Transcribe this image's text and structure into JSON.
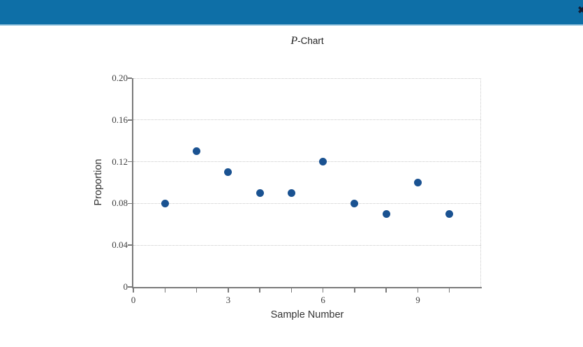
{
  "header": {
    "close_glyph": "✖"
  },
  "figure": {
    "title_italic": "P",
    "title_rest": "-Chart"
  },
  "chart_data": {
    "type": "scatter",
    "title": "P-Chart",
    "xlabel": "Sample Number",
    "ylabel": "Proportion",
    "x": [
      1,
      2,
      3,
      4,
      5,
      6,
      7,
      8,
      9,
      10
    ],
    "y": [
      0.08,
      0.13,
      0.11,
      0.09,
      0.09,
      0.12,
      0.08,
      0.07,
      0.1,
      0.07
    ],
    "xlim": [
      0,
      11
    ],
    "ylim": [
      0,
      0.2
    ],
    "x_ticks": [
      0,
      1,
      2,
      3,
      4,
      5,
      6,
      7,
      8,
      9,
      10
    ],
    "x_labeled_ticks": [
      {
        "value": 0,
        "label": "0"
      },
      {
        "value": 3,
        "label": "3"
      },
      {
        "value": 6,
        "label": "6"
      },
      {
        "value": 9,
        "label": "9"
      }
    ],
    "y_ticks": [
      {
        "value": 0,
        "label": "0"
      },
      {
        "value": 0.04,
        "label": "0.04"
      },
      {
        "value": 0.08,
        "label": "0.08"
      },
      {
        "value": 0.12,
        "label": "0.12"
      },
      {
        "value": 0.16,
        "label": "0.16"
      },
      {
        "value": 0.2,
        "label": "0.20"
      }
    ],
    "grid": "horizontal dotted gridlines at y ticks, dotted right plot border",
    "legend": "none"
  },
  "colors": {
    "header_blue": "#0e6fa7",
    "header_border": "#a9cfe5",
    "point_color": "#1a5291",
    "axis_color": "#7a7a7a",
    "gridline_color": "#c9c9c9",
    "tick_label_color": "#3f3f3f",
    "axis_label_color": "#333333",
    "close_color": "#131c33"
  }
}
